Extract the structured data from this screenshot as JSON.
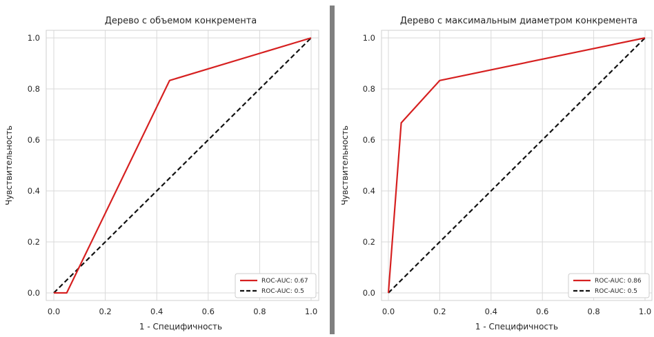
{
  "chart_data": [
    {
      "type": "line",
      "title": "Дерево с объемом конкремента",
      "xlabel": "1 - Специфичность",
      "ylabel": "Чувствительность",
      "xlim": [
        0,
        1
      ],
      "ylim": [
        0,
        1
      ],
      "xticks": [
        "0.0",
        "0.2",
        "0.4",
        "0.6",
        "0.8",
        "1.0"
      ],
      "yticks": [
        "0.0",
        "0.2",
        "0.4",
        "0.6",
        "0.8",
        "1.0"
      ],
      "grid": true,
      "legend_position": "bottom-right",
      "series": [
        {
          "name": "ROC-AUC: 0.67",
          "color": "#d62020",
          "style": "solid",
          "x": [
            0.0,
            0.05,
            0.45,
            1.0
          ],
          "y": [
            0.0,
            0.0,
            0.833,
            1.0
          ]
        },
        {
          "name": "ROC-AUC: 0.5",
          "color": "#111111",
          "style": "dashed",
          "x": [
            0.0,
            1.0
          ],
          "y": [
            0.0,
            1.0
          ]
        }
      ]
    },
    {
      "type": "line",
      "title": "Дерево с максимальным диаметром конкремента",
      "xlabel": "1 - Специфичность",
      "ylabel": "Чувствительность",
      "xlim": [
        0,
        1
      ],
      "ylim": [
        0,
        1
      ],
      "xticks": [
        "0.0",
        "0.2",
        "0.4",
        "0.6",
        "0.8",
        "1.0"
      ],
      "yticks": [
        "0.0",
        "0.2",
        "0.4",
        "0.6",
        "0.8",
        "1.0"
      ],
      "grid": true,
      "legend_position": "bottom-right",
      "series": [
        {
          "name": "ROC-AUC: 0.86",
          "color": "#d62020",
          "style": "solid",
          "x": [
            0.0,
            0.05,
            0.2,
            1.0
          ],
          "y": [
            0.0,
            0.667,
            0.833,
            1.0
          ]
        },
        {
          "name": "ROC-AUC: 0.5",
          "color": "#111111",
          "style": "dashed",
          "x": [
            0.0,
            1.0
          ],
          "y": [
            0.0,
            1.0
          ]
        }
      ]
    }
  ]
}
